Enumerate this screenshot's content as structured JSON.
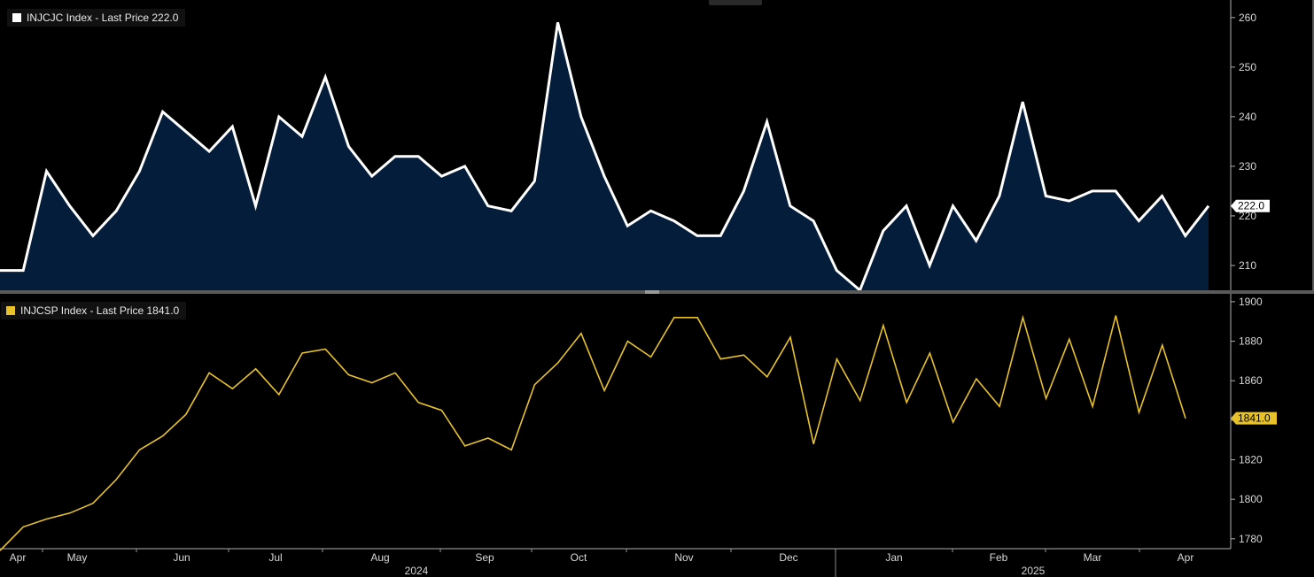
{
  "legend_top": {
    "label": "INJCJC Index - Last Price 222.0",
    "color": "#ffffff"
  },
  "legend_bottom": {
    "label": "INJCSP Index - Last Price 1841.0",
    "color": "#e8c22a"
  },
  "top_tab_label": "",
  "chart_data": [
    {
      "type": "area",
      "series": [
        {
          "name": "INJCJC Index - Last Price",
          "last_value_label": "222.0",
          "line_color": "#ffffff",
          "fill_color": "#041d3b",
          "values": [
            209,
            209,
            229,
            222,
            216,
            221,
            229,
            241,
            237,
            233,
            238,
            222,
            240,
            236,
            248,
            234,
            228,
            232,
            232,
            228,
            230,
            222,
            221,
            227,
            259,
            240,
            228,
            218,
            221,
            219,
            216,
            216,
            225,
            239,
            222,
            219,
            209,
            205,
            217,
            222,
            210,
            222,
            215,
            224,
            243,
            224,
            223,
            225,
            225,
            219,
            224,
            216,
            222
          ]
        }
      ],
      "ylim": [
        205,
        263
      ],
      "yticks": [
        "210",
        "220",
        "230",
        "240",
        "250",
        "260"
      ],
      "ytick_values": [
        210,
        220,
        230,
        240,
        250,
        260
      ]
    },
    {
      "type": "line",
      "series": [
        {
          "name": "INJCSP Index - Last Price",
          "last_value_label": "1841.0",
          "line_color": "#e8c22a",
          "values": [
            1774,
            1786,
            1790,
            1793,
            1798,
            1810,
            1825,
            1832,
            1843,
            1864,
            1856,
            1866,
            1853,
            1874,
            1876,
            1863,
            1859,
            1864,
            1849,
            1845,
            1827,
            1831,
            1825,
            1858,
            1869,
            1884,
            1855,
            1880,
            1872,
            1892,
            1892,
            1871,
            1873,
            1862,
            1882,
            1828,
            1871,
            1850,
            1888,
            1849,
            1874,
            1839,
            1861,
            1847,
            1892,
            1851,
            1881,
            1847,
            1893,
            1844,
            1878,
            1841
          ]
        }
      ],
      "ylim": [
        1775,
        1904
      ],
      "yticks": [
        "1780",
        "1800",
        "1820",
        "1840",
        "1860",
        "1880",
        "1900"
      ],
      "ytick_values": [
        1780,
        1800,
        1820,
        1840,
        1860,
        1880,
        1900
      ]
    }
  ],
  "x_axis": {
    "months": [
      "Apr",
      "May",
      "Jun",
      "Jul",
      "Aug",
      "Sep",
      "Oct",
      "Nov",
      "Dec",
      "Jan",
      "Feb",
      "Mar",
      "Apr"
    ],
    "years": [
      "2024",
      "2025"
    ]
  }
}
